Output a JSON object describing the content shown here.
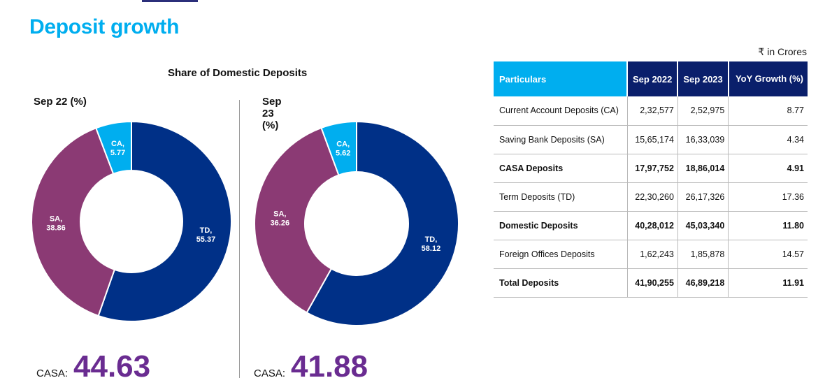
{
  "page": {
    "title": "Deposit growth",
    "chart_heading": "Share of Domestic Deposits"
  },
  "chart_data": [
    {
      "type": "pie",
      "title": "Sep 22 (%)",
      "slices": [
        {
          "label": "TD",
          "value": 55.37,
          "color": "#003087"
        },
        {
          "label": "SA",
          "value": 38.86,
          "color": "#8b3a74"
        },
        {
          "label": "CA",
          "value": 5.77,
          "color": "#00aeef"
        }
      ],
      "casa_label": "CASA:",
      "casa_value": "44.63"
    },
    {
      "type": "pie",
      "title": "Sep 23 (%)",
      "slices": [
        {
          "label": "TD",
          "value": 58.12,
          "color": "#003087"
        },
        {
          "label": "SA",
          "value": 36.26,
          "color": "#8b3a74"
        },
        {
          "label": "CA",
          "value": 5.62,
          "color": "#00aeef"
        }
      ],
      "casa_label": "CASA:",
      "casa_value": "41.88"
    }
  ],
  "table": {
    "units_note": "₹ in Crores",
    "headers": [
      "Particulars",
      "Sep 2022",
      "Sep 2023",
      "YoY Growth (%)"
    ],
    "rows": [
      {
        "name": "Current Account Deposits (CA)",
        "sep2022": "2,32,577",
        "sep2023": "2,52,975",
        "yoy": "8.77",
        "bold": false
      },
      {
        "name": "Saving Bank Deposits (SA)",
        "sep2022": "15,65,174",
        "sep2023": "16,33,039",
        "yoy": "4.34",
        "bold": false
      },
      {
        "name": "CASA Deposits",
        "sep2022": "17,97,752",
        "sep2023": "18,86,014",
        "yoy": "4.91",
        "bold": true
      },
      {
        "name": "Term Deposits (TD)",
        "sep2022": "22,30,260",
        "sep2023": "26,17,326",
        "yoy": "17.36",
        "bold": false
      },
      {
        "name": "Domestic Deposits",
        "sep2022": "40,28,012",
        "sep2023": "45,03,340",
        "yoy": "11.80",
        "bold": true
      },
      {
        "name": "Foreign Offices Deposits",
        "sep2022": "1,62,243",
        "sep2023": "1,85,878",
        "yoy": "14.57",
        "bold": false
      },
      {
        "name": "Total Deposits",
        "sep2022": "41,90,255",
        "sep2023": "46,89,218",
        "yoy": "11.91",
        "bold": true
      }
    ]
  }
}
